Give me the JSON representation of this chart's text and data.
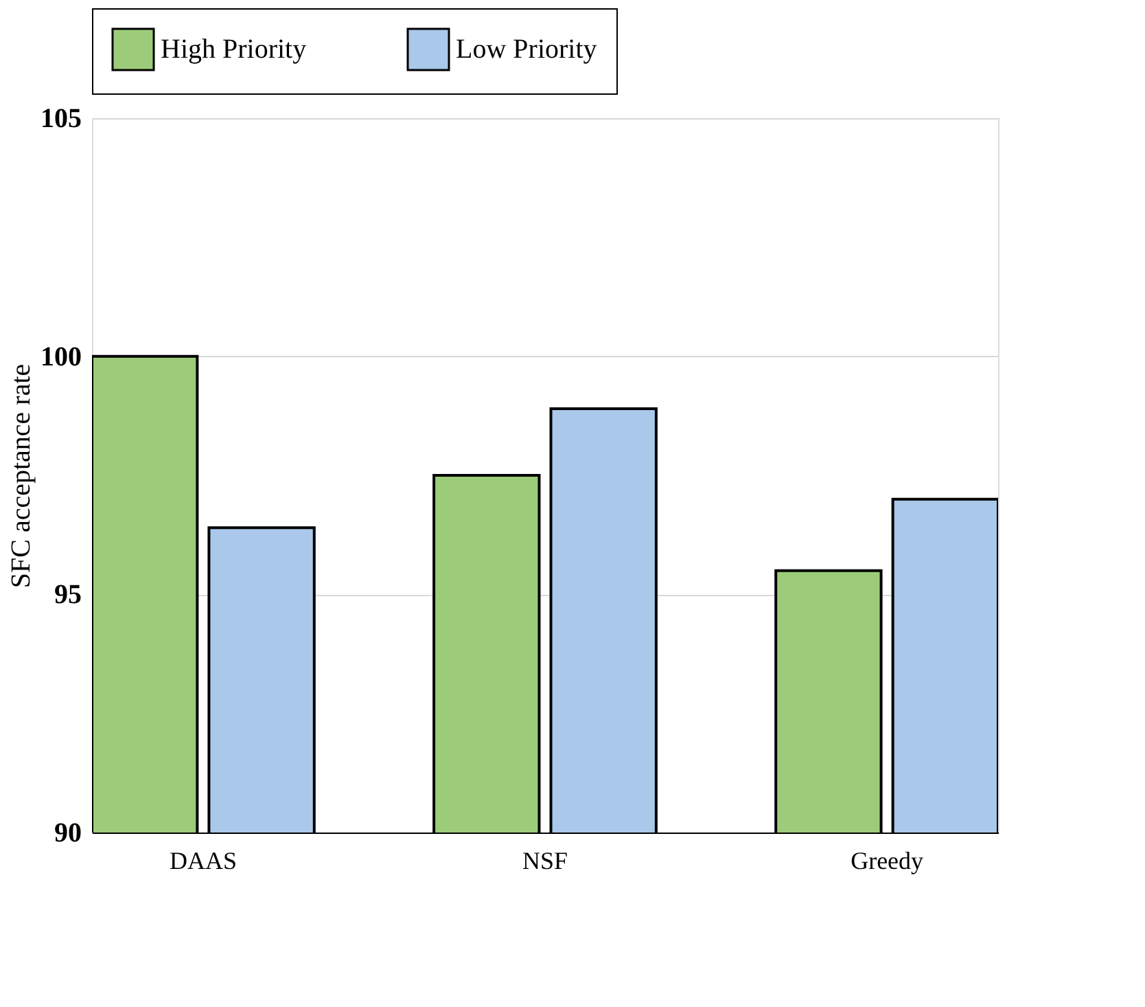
{
  "chart_data": {
    "type": "bar",
    "ylabel": "SFC acceptance rate",
    "categories": [
      "DAAS",
      "NSF",
      "Greedy"
    ],
    "series": [
      {
        "name": "High Priority",
        "color": "#9ccc7a",
        "values": [
          100,
          97.5,
          95.5
        ]
      },
      {
        "name": "Low Priority",
        "color": "#a9c8ea",
        "values": [
          96.4,
          98.9,
          97.0
        ]
      }
    ],
    "ylim": [
      90,
      105
    ],
    "yticks": [
      90,
      95,
      100,
      105
    ],
    "grid": "y",
    "legend": "top"
  }
}
